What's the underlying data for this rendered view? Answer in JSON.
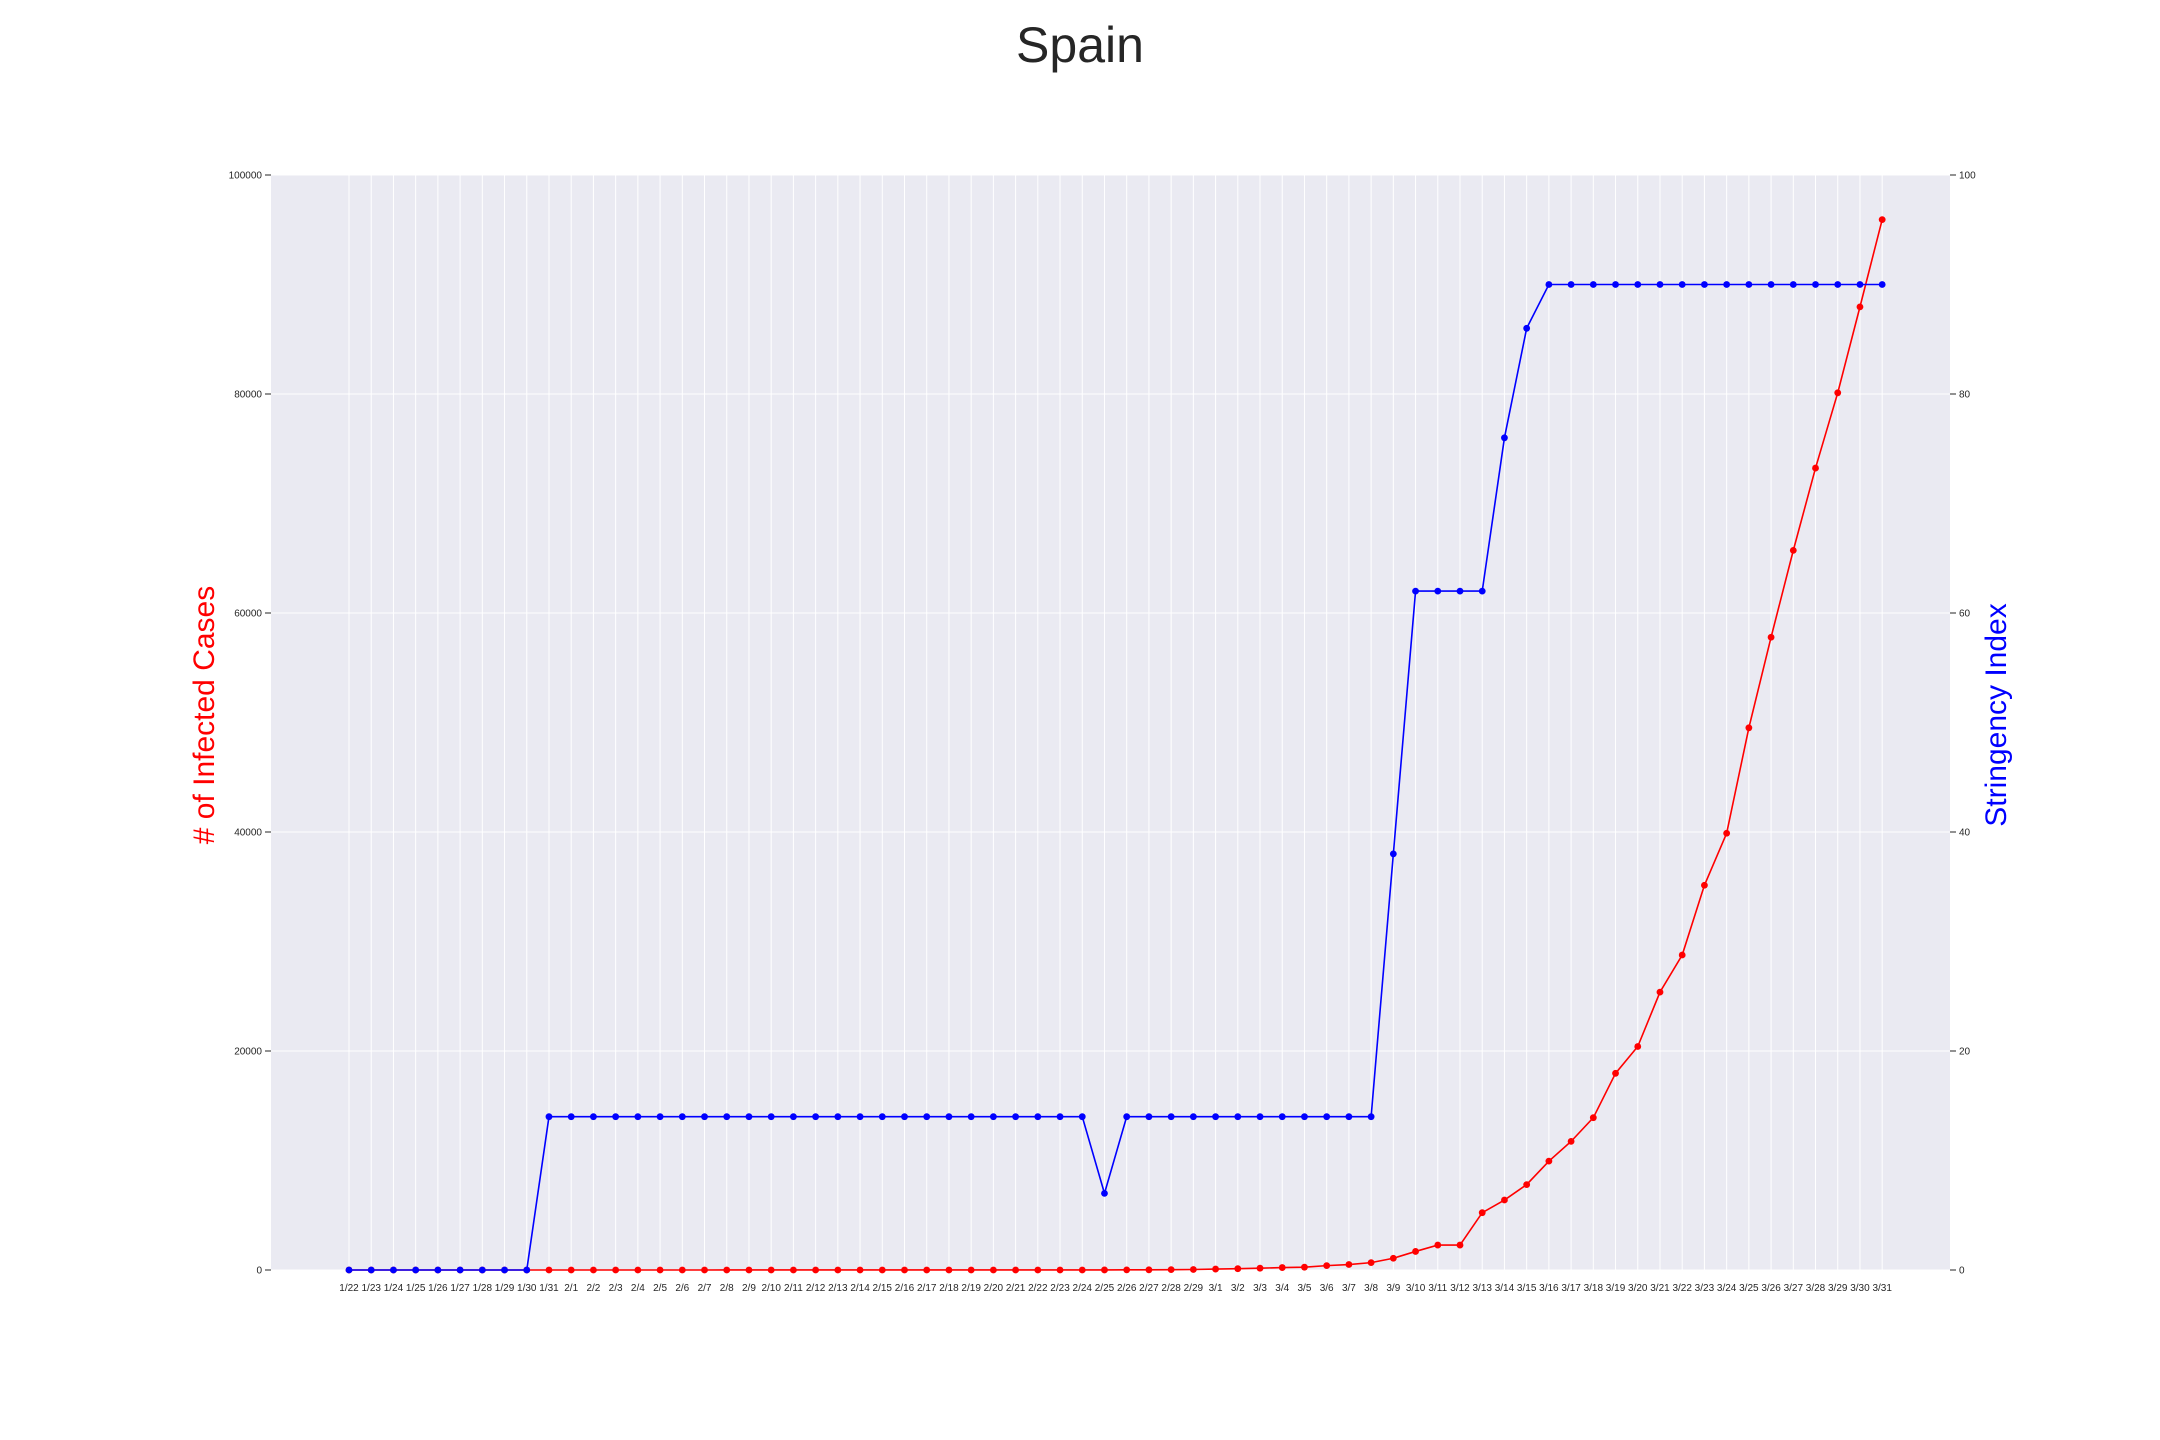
{
  "chart_data": {
    "type": "line",
    "title": "Spain",
    "ylabel_left": "# of Infected Cases",
    "ylabel_right": "Stringency Index",
    "ylim_left": [
      0,
      100000
    ],
    "ylim_right": [
      0,
      100
    ],
    "yticks_left": [
      "0",
      "20000",
      "40000",
      "60000",
      "80000",
      "100000"
    ],
    "yticks_right": [
      "0",
      "20",
      "40",
      "60",
      "80",
      "100"
    ],
    "grid": true,
    "categories": [
      "1/22",
      "1/23",
      "1/24",
      "1/25",
      "1/26",
      "1/27",
      "1/28",
      "1/29",
      "1/30",
      "1/31",
      "2/1",
      "2/2",
      "2/3",
      "2/4",
      "2/5",
      "2/6",
      "2/7",
      "2/8",
      "2/9",
      "2/10",
      "2/11",
      "2/12",
      "2/13",
      "2/14",
      "2/15",
      "2/16",
      "2/17",
      "2/18",
      "2/19",
      "2/20",
      "2/21",
      "2/22",
      "2/23",
      "2/24",
      "2/25",
      "2/26",
      "2/27",
      "2/28",
      "2/29",
      "3/1",
      "3/2",
      "3/3",
      "3/4",
      "3/5",
      "3/6",
      "3/7",
      "3/8",
      "3/9",
      "3/10",
      "3/11",
      "3/12",
      "3/13",
      "3/14",
      "3/15",
      "3/16",
      "3/17",
      "3/18",
      "3/19",
      "3/20",
      "3/21",
      "3/22",
      "3/23",
      "3/24",
      "3/25",
      "3/26",
      "3/27",
      "3/28",
      "3/29",
      "3/30",
      "3/31"
    ],
    "series": [
      {
        "axis": "left",
        "color": "#ff0000",
        "values": [
          0,
          0,
          0,
          0,
          0,
          0,
          0,
          0,
          0,
          1,
          1,
          1,
          1,
          1,
          1,
          1,
          1,
          2,
          2,
          2,
          2,
          2,
          2,
          2,
          2,
          2,
          2,
          2,
          2,
          2,
          2,
          2,
          2,
          2,
          6,
          13,
          15,
          32,
          45,
          84,
          120,
          165,
          222,
          259,
          400,
          500,
          673,
          1073,
          1695,
          2277,
          2277,
          5232,
          6391,
          7798,
          9942,
          11748,
          13910,
          17963,
          20410,
          25374,
          28768,
          35136,
          39885,
          49515,
          57786,
          65719,
          73235,
          80110,
          87956,
          95923
        ]
      },
      {
        "axis": "right",
        "color": "#0000ff",
        "values": [
          0,
          0,
          0,
          0,
          0,
          0,
          0,
          0,
          0,
          14,
          14,
          14,
          14,
          14,
          14,
          14,
          14,
          14,
          14,
          14,
          14,
          14,
          14,
          14,
          14,
          14,
          14,
          14,
          14,
          14,
          14,
          14,
          14,
          14,
          7,
          14,
          14,
          14,
          14,
          14,
          14,
          14,
          14,
          14,
          14,
          14,
          14,
          38,
          62,
          62,
          62,
          62,
          76,
          86,
          90,
          90,
          90,
          90,
          90,
          90,
          90,
          90,
          90,
          90,
          90,
          90,
          90,
          90,
          90,
          90
        ]
      }
    ]
  }
}
